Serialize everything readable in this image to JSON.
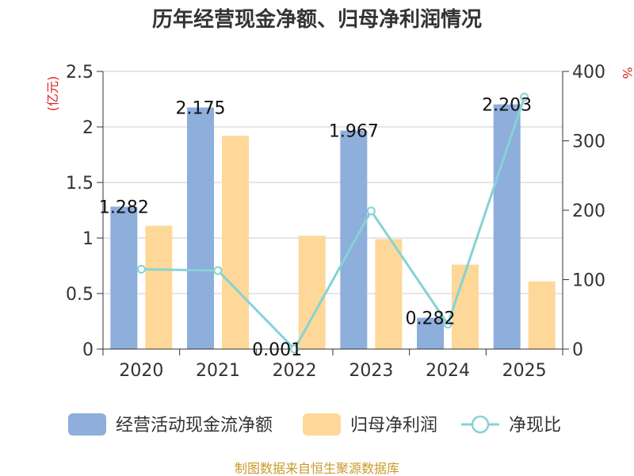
{
  "chart_data": {
    "type": "bar",
    "title": "历年经营现金净额、归母净利润情况",
    "categories": [
      "2020",
      "2021",
      "2022",
      "2023",
      "2024",
      "2025"
    ],
    "series": [
      {
        "name": "经营活动现金流净额",
        "type": "bar",
        "axis": "left",
        "color": "#8eaedb",
        "values": [
          1.282,
          2.175,
          0.001,
          1.967,
          0.282,
          2.203
        ]
      },
      {
        "name": "归母净利润",
        "type": "bar",
        "axis": "left",
        "color": "#fdd898",
        "values": [
          1.11,
          1.92,
          1.02,
          0.99,
          0.76,
          0.61
        ]
      },
      {
        "name": "净现比",
        "type": "line",
        "axis": "right",
        "color": "#86d2d6",
        "values": [
          115,
          113,
          0,
          199,
          36,
          363
        ]
      }
    ],
    "data_labels": [
      "1.282",
      "2.175",
      "0.001",
      "1.967",
      "0.282",
      "2.203"
    ],
    "y_left": {
      "ylim": [
        0,
        2.5
      ],
      "ticks": [
        "0",
        "0.5",
        "1",
        "1.5",
        "2",
        "2.5"
      ],
      "tick_values": [
        0,
        0.5,
        1,
        1.5,
        2,
        2.5
      ],
      "unit": "(亿元)"
    },
    "y_right": {
      "ylim": [
        0,
        400
      ],
      "ticks": [
        "0",
        "100",
        "200",
        "300",
        "400"
      ],
      "tick_values": [
        0,
        100,
        200,
        300,
        400
      ],
      "unit": "%"
    },
    "grid": true,
    "legend_position": "bottom"
  },
  "source": "制图数据来自恒生聚源数据库"
}
